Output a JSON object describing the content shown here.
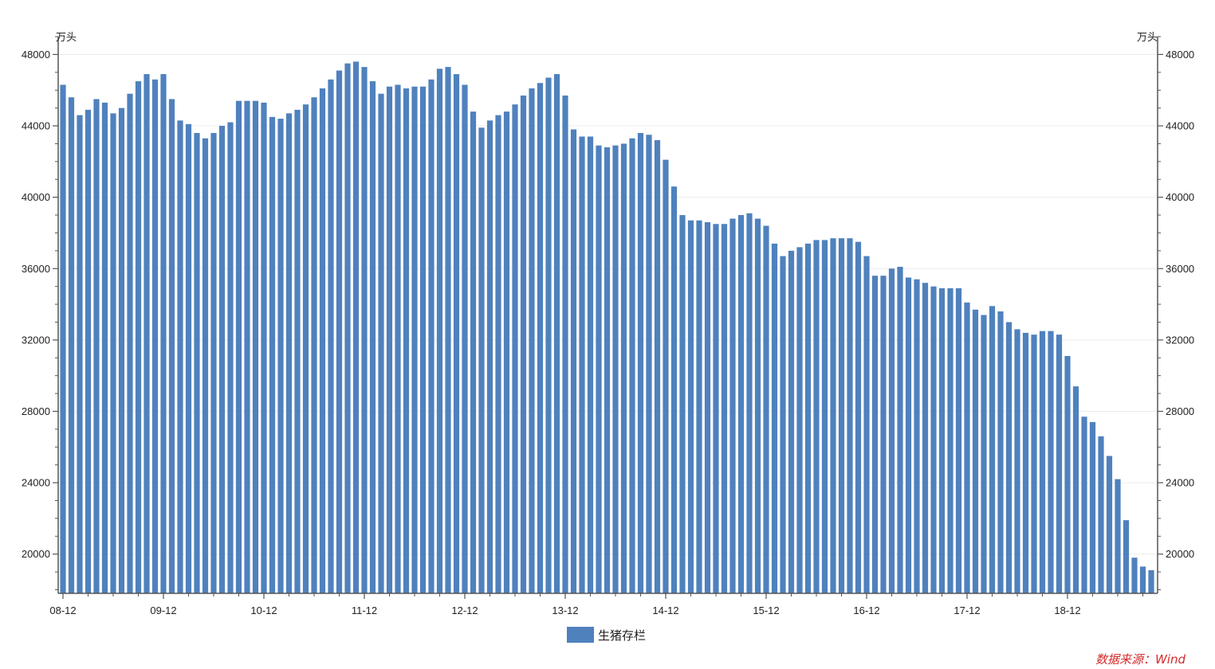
{
  "chart_data": {
    "type": "bar",
    "title": "",
    "xlabel": "",
    "left_unit": "万头",
    "right_unit": "万头",
    "ylim": [
      17800,
      49000
    ],
    "y_ticks": [
      "48000",
      "44000",
      "40000",
      "36000",
      "32000",
      "28000",
      "24000",
      "20000"
    ],
    "y_tick_values": [
      48000,
      44000,
      40000,
      36000,
      32000,
      28000,
      24000,
      20000
    ],
    "x_tick_labels": [
      "08-12",
      "09-12",
      "10-12",
      "11-12",
      "12-12",
      "13-12",
      "14-12",
      "15-12",
      "16-12",
      "17-12",
      "18-12"
    ],
    "x_tick_indices": [
      0,
      12,
      24,
      36,
      48,
      60,
      72,
      84,
      96,
      108,
      120
    ],
    "grid": true,
    "legend_position": "bottom-center",
    "series": [
      {
        "name": "生猪存栏",
        "color": "#4f81bd",
        "values": [
          46300,
          45600,
          44600,
          44900,
          45500,
          45300,
          44700,
          45000,
          45800,
          46500,
          46900,
          46600,
          46900,
          45500,
          44300,
          44100,
          43600,
          43300,
          43600,
          44000,
          44200,
          45400,
          45400,
          45400,
          45300,
          44500,
          44400,
          44700,
          44900,
          45200,
          45600,
          46100,
          46600,
          47100,
          47500,
          47600,
          47300,
          46500,
          45800,
          46200,
          46300,
          46100,
          46200,
          46200,
          46600,
          47200,
          47300,
          46900,
          46300,
          44800,
          43900,
          44300,
          44600,
          44800,
          45200,
          45700,
          46100,
          46400,
          46700,
          46900,
          45700,
          43800,
          43400,
          43400,
          42900,
          42800,
          42900,
          43000,
          43300,
          43600,
          43500,
          43200,
          42100,
          40600,
          39000,
          38700,
          38700,
          38600,
          38500,
          38500,
          38800,
          39000,
          39100,
          38800,
          38400,
          37400,
          36700,
          37000,
          37200,
          37400,
          37600,
          37600,
          37700,
          37700,
          37700,
          37500,
          36700,
          35600,
          35600,
          36000,
          36100,
          35500,
          35400,
          35200,
          35000,
          34900,
          34900,
          34900,
          34100,
          33700,
          33400,
          33900,
          33600,
          33000,
          32600,
          32400,
          32300,
          32500,
          32500,
          32300,
          31100,
          29400,
          27700,
          27400,
          26600,
          25500,
          24200,
          21900,
          19800,
          19300,
          19100
        ]
      }
    ],
    "source": "数据来源：Wind",
    "source_color": "#d42a2a"
  }
}
